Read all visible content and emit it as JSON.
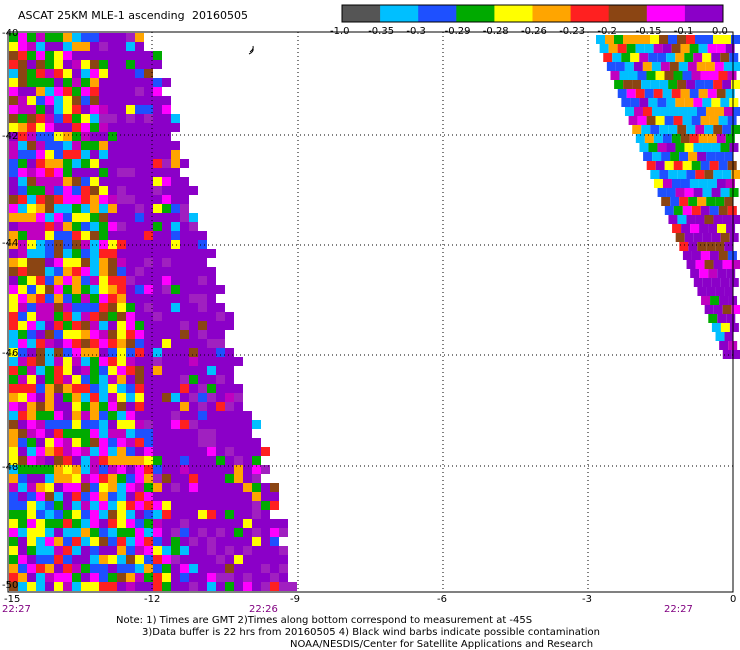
{
  "header": {
    "title": "ASCAT 25KM MLE-1 ascending",
    "date": "20160505"
  },
  "colorbar": {
    "swatches": [
      "#555555",
      "#00bfff",
      "#1e50ff",
      "#00aa00",
      "#ffff00",
      "#ffa500",
      "#ff2020",
      "#8b4513",
      "#ff00ff",
      "#8b00c8"
    ],
    "labels": [
      "-1.0",
      "-0.35",
      "-0.3",
      "-0.29",
      "-0.28",
      "-0.26",
      "-0.23",
      "-0.2",
      "-0.15",
      "-0.1",
      "0.0"
    ]
  },
  "axes": {
    "x_ticks": [
      "-15",
      "-12",
      "-9",
      "-6",
      "-3",
      "0"
    ],
    "y_ticks": [
      "-40",
      "-42",
      "-44",
      "-46",
      "-48",
      "-50"
    ]
  },
  "times": [
    "22:27",
    "22:26",
    "22:27"
  ],
  "notes": {
    "line1": "Note: 1) Times are GMT 2)Times along bottom correspond to measurement at -45S",
    "line2": "3)Data buffer is 22 hrs from 20160505 4) Black wind barbs indicate possible contamination",
    "line3": "NOAA/NESDIS/Center for Satellite Applications and Research"
  }
}
